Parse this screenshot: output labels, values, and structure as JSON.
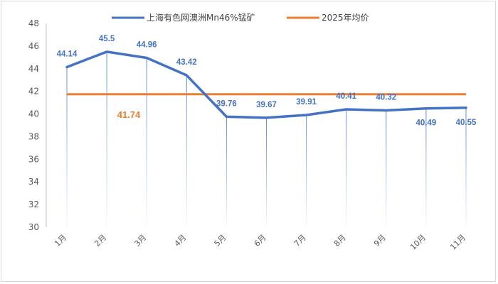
{
  "chart_data": {
    "type": "line",
    "categories": [
      "1月",
      "2月",
      "3月",
      "4月",
      "5月",
      "6月",
      "7月",
      "8月",
      "9月",
      "10月",
      "11月"
    ],
    "series": [
      {
        "name": "上海有色网澳洲Mn46%锰矿",
        "color": "#4472c4",
        "values": [
          44.14,
          45.5,
          44.96,
          43.42,
          39.76,
          39.67,
          39.91,
          40.41,
          40.32,
          40.49,
          40.55
        ],
        "labels": [
          "44.14",
          "45.5",
          "44.96",
          "43.42",
          "39.76",
          "39.67",
          "39.91",
          "40.41",
          "40.32",
          "40.49",
          "40.55"
        ]
      },
      {
        "name": "2025年均价",
        "color": "#ed7d31",
        "value": 41.74,
        "label": "41.74"
      }
    ],
    "ylim": [
      30,
      48
    ],
    "yticks": [
      30,
      32,
      34,
      36,
      38,
      40,
      42,
      44,
      46,
      48
    ],
    "gridlines": "vertical drop lines at each category",
    "legend_position": "top"
  }
}
